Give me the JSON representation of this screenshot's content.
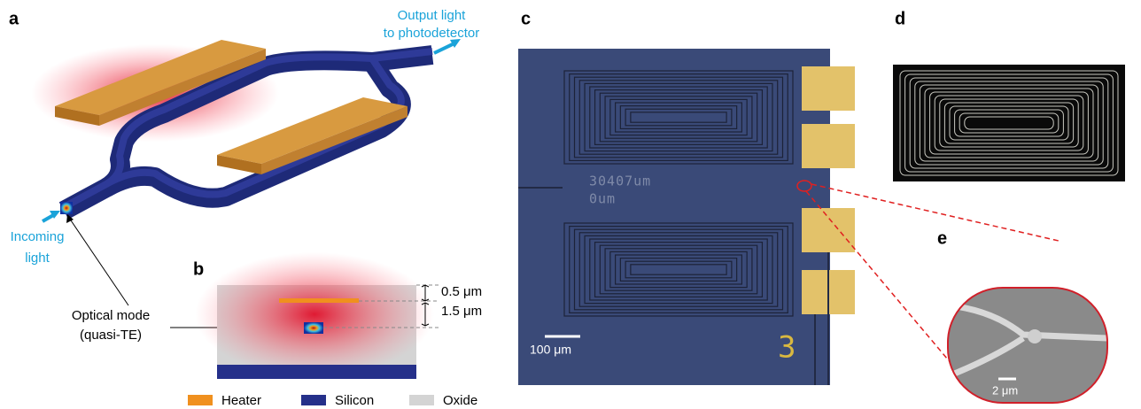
{
  "panels": {
    "a": {
      "label": "a",
      "output_label": [
        "Output light",
        "to photodetector"
      ],
      "input_label": [
        "Incoming",
        "light"
      ],
      "mode_label": [
        "Optical mode",
        "(quasi-TE)"
      ]
    },
    "b": {
      "label": "b",
      "dimensions": [
        "0.5 μm",
        "1.5 μm"
      ],
      "legend": [
        "Heater",
        "Silicon",
        "Oxide"
      ]
    },
    "c": {
      "label": "c",
      "chip_text": [
        "30407um",
        "0um"
      ],
      "scale_bar": "100 μm",
      "chip_number": "3"
    },
    "d": {
      "label": "d"
    },
    "e": {
      "label": "e",
      "scale_bar": "2 μm"
    }
  }
}
